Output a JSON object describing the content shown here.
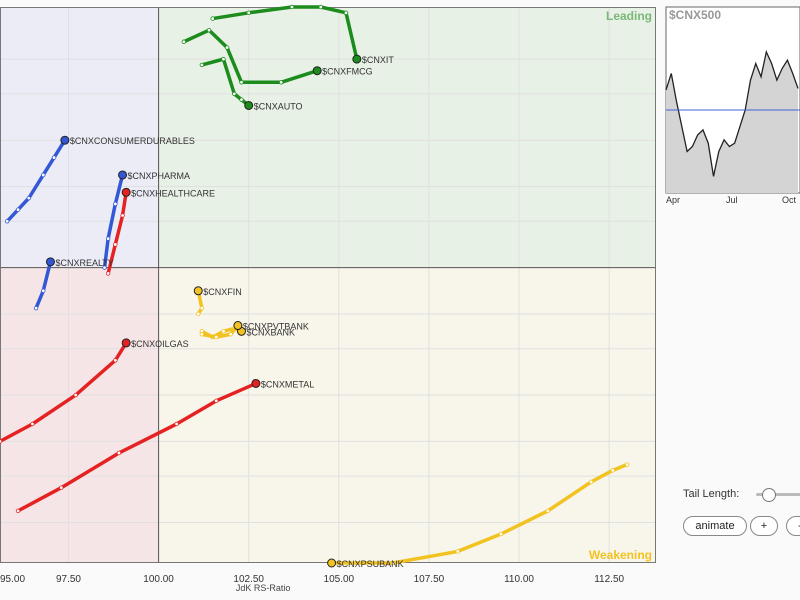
{
  "chart_data": {
    "type": "scatter",
    "benchmark": "$CNX500",
    "xlabel": "JdK RS-Ratio",
    "xlim": [
      95.6,
      113.8
    ],
    "ylim": [
      94.9,
      104.5
    ],
    "center": [
      100,
      100
    ],
    "x_ticks": [
      95.0,
      97.5,
      100.0,
      102.5,
      105.0,
      107.5,
      110.0,
      112.5
    ],
    "x_tick_labels": [
      "95.00",
      "97.50",
      "100.00",
      "102.50",
      "105.00",
      "107.50",
      "110.00",
      "112.50"
    ],
    "y_gridlines": [
      95.6,
      96.4,
      97.0,
      97.8,
      98.6,
      99.2,
      100.0,
      100.8,
      101.4,
      102.2,
      103.0,
      103.6
    ],
    "quadrants": [
      {
        "name": "Leading",
        "position": "top-right",
        "fill": "#e8f1e6",
        "label_color": "#7ab87a"
      },
      {
        "name": "Weakening",
        "position": "bottom-right",
        "fill": "#f8f5ea",
        "label_color": "#f2c220"
      },
      {
        "name": "",
        "position": "top-left",
        "fill": "#ececf7",
        "label_color": ""
      },
      {
        "name": "",
        "position": "bottom-left",
        "fill": "#f6e5e7",
        "label_color": ""
      }
    ],
    "series": [
      {
        "name": "$CNXIT",
        "color": "#1c8c1c",
        "points": [
          [
            101.5,
            104.3
          ],
          [
            102.5,
            104.4
          ],
          [
            103.7,
            104.5
          ],
          [
            104.5,
            104.5
          ],
          [
            105.2,
            104.4
          ],
          [
            105.5,
            103.6
          ]
        ]
      },
      {
        "name": "$CNXFMCG",
        "color": "#1c8c1c",
        "points": [
          [
            100.7,
            103.9
          ],
          [
            101.4,
            104.1
          ],
          [
            101.9,
            103.8
          ],
          [
            102.3,
            103.2
          ],
          [
            103.4,
            103.2
          ],
          [
            104.4,
            103.4
          ]
        ]
      },
      {
        "name": "$CNXAUTO",
        "color": "#1c8c1c",
        "points": [
          [
            101.2,
            103.5
          ],
          [
            101.8,
            103.6
          ],
          [
            102.1,
            103.0
          ],
          [
            102.3,
            102.9
          ],
          [
            102.5,
            102.8
          ]
        ]
      },
      {
        "name": "$CNXCONSUMERDURABLES",
        "color": "#3358d6",
        "points": [
          [
            95.8,
            100.8
          ],
          [
            96.1,
            101.0
          ],
          [
            96.4,
            101.2
          ],
          [
            96.8,
            101.6
          ],
          [
            97.1,
            101.9
          ],
          [
            97.4,
            102.2
          ]
        ]
      },
      {
        "name": "$CNXREALTY",
        "color": "#3358d6",
        "points": [
          [
            96.6,
            99.3
          ],
          [
            96.8,
            99.6
          ],
          [
            97.0,
            100.1
          ]
        ]
      },
      {
        "name": "$CNXPHARMA",
        "color": "#3358d6",
        "points": [
          [
            98.5,
            100.0
          ],
          [
            98.6,
            100.5
          ],
          [
            98.8,
            101.1
          ],
          [
            99.0,
            101.6
          ]
        ]
      },
      {
        "name": "$CNXHEALTHCARE",
        "color": "#e52222",
        "points": [
          [
            98.6,
            99.9
          ],
          [
            98.8,
            100.4
          ],
          [
            99.0,
            100.9
          ],
          [
            99.1,
            101.3
          ]
        ]
      },
      {
        "name": "$CNXOILGAS",
        "color": "#e52222",
        "points": [
          [
            95.6,
            97.0
          ],
          [
            96.5,
            97.3
          ],
          [
            97.7,
            97.8
          ],
          [
            98.8,
            98.4
          ],
          [
            99.1,
            98.7
          ]
        ]
      },
      {
        "name": "$CNXMETAL",
        "color": "#e52222",
        "points": [
          [
            96.1,
            95.8
          ],
          [
            97.3,
            96.2
          ],
          [
            98.9,
            96.8
          ],
          [
            100.5,
            97.3
          ],
          [
            101.6,
            97.7
          ],
          [
            102.7,
            98.0
          ]
        ]
      },
      {
        "name": "$CNXFIN",
        "color": "#f2c220",
        "points": [
          [
            101.1,
            99.2
          ],
          [
            101.2,
            99.3
          ],
          [
            101.1,
            99.6
          ]
        ]
      },
      {
        "name": "$CNXBANK",
        "color": "#f2c220",
        "points": [
          [
            101.2,
            98.9
          ],
          [
            101.5,
            98.8
          ],
          [
            101.8,
            98.9
          ],
          [
            102.1,
            98.95
          ],
          [
            102.3,
            98.9
          ]
        ]
      },
      {
        "name": "$CNXPVTBANK",
        "color": "#f2c220",
        "points": [
          [
            101.2,
            98.85
          ],
          [
            101.6,
            98.8
          ],
          [
            102.0,
            98.85
          ],
          [
            102.2,
            99.0
          ]
        ]
      },
      {
        "name": "$CNXPSUBANK",
        "color": "#f2c220",
        "points": [
          [
            113.0,
            96.6
          ],
          [
            112.6,
            96.5
          ],
          [
            112.0,
            96.3
          ],
          [
            110.8,
            95.8
          ],
          [
            109.5,
            95.4
          ],
          [
            108.3,
            95.1
          ],
          [
            106.5,
            94.9
          ],
          [
            104.8,
            94.9
          ]
        ]
      }
    ]
  },
  "mini_chart": {
    "title": "$CNX500",
    "x_tick_labels": [
      "Apr",
      "Jul",
      "Oct"
    ],
    "reference_level": 0.5,
    "values": [
      0.62,
      0.72,
      0.55,
      0.4,
      0.25,
      0.28,
      0.35,
      0.38,
      0.3,
      0.1,
      0.25,
      0.32,
      0.28,
      0.3,
      0.4,
      0.5,
      0.68,
      0.78,
      0.7,
      0.85,
      0.78,
      0.68,
      0.75,
      0.8,
      0.72,
      0.63
    ]
  },
  "controls": {
    "tail_length_label": "Tail Length:",
    "animate_label": "animate",
    "plus_label": "+",
    "minus_label": "-"
  }
}
